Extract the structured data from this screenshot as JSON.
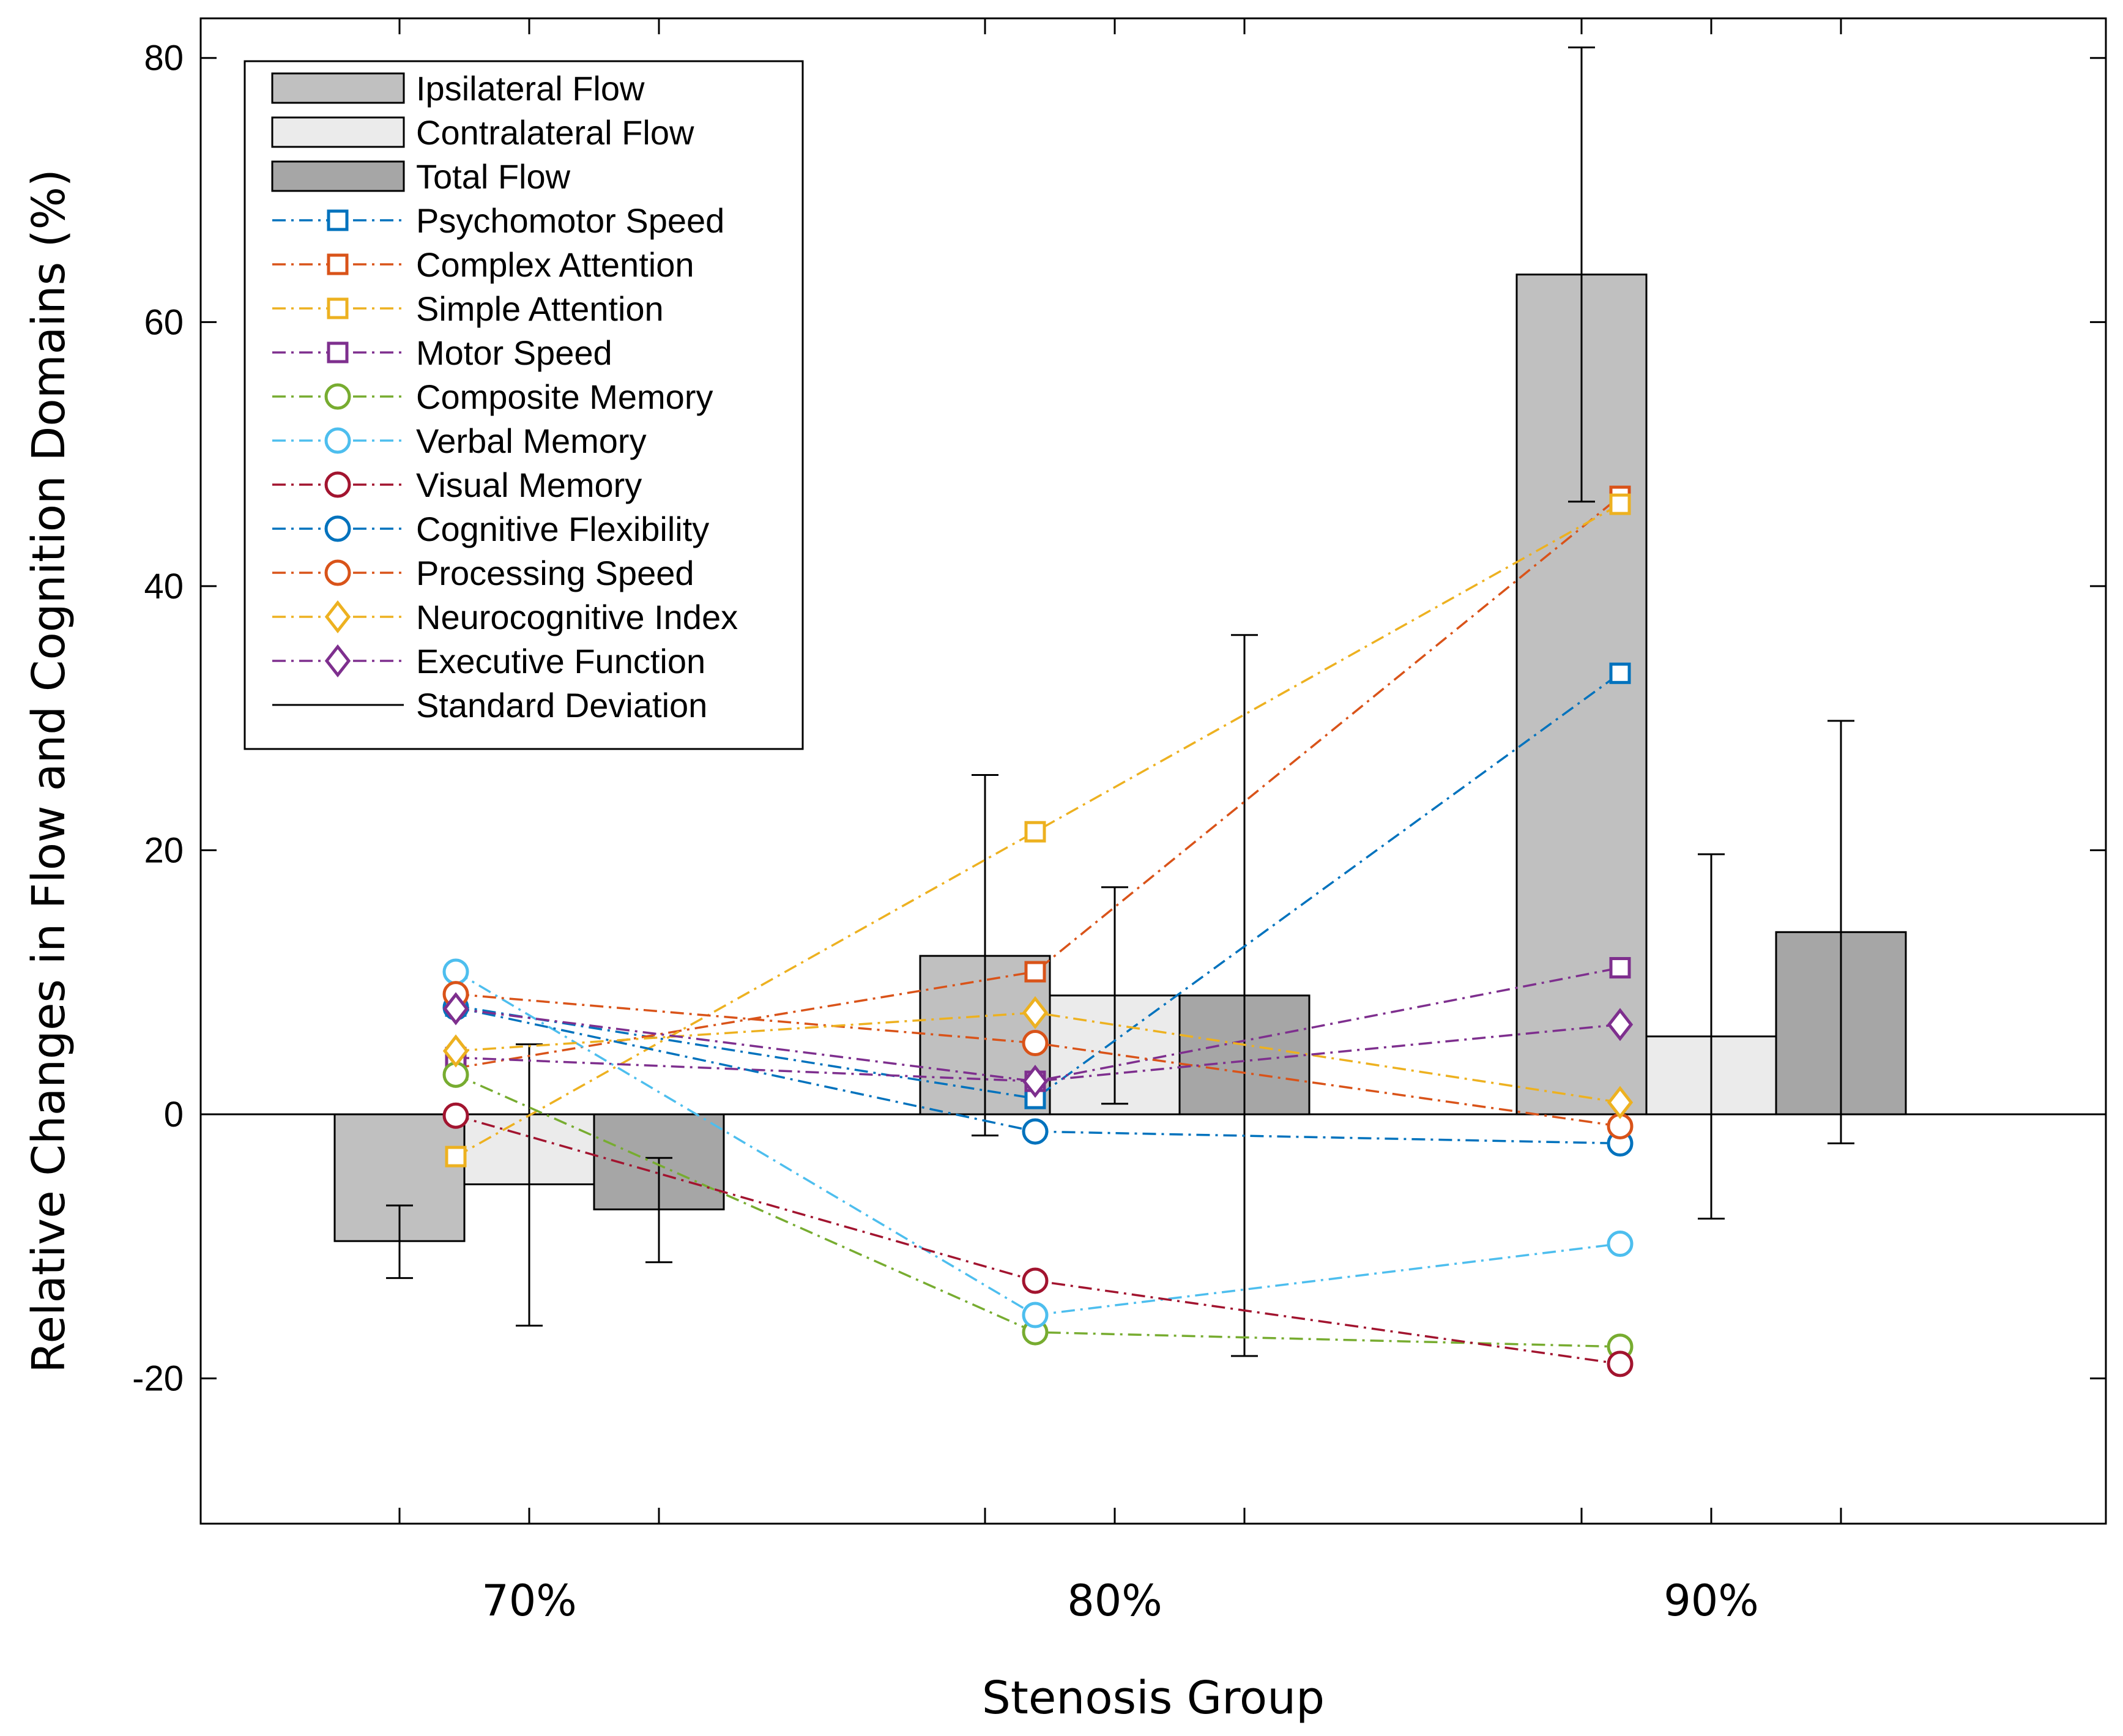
{
  "chart_data": {
    "type": "bar",
    "title": "",
    "xlabel": "Stenosis Group",
    "ylabel": "Relative Changes in Flow and Cognition Domains (%)",
    "ylim": [
      -31,
      83
    ],
    "yticks": [
      -20,
      0,
      20,
      40,
      60,
      80
    ],
    "categories": [
      "70%",
      "80%",
      "90%"
    ],
    "bar_series": [
      {
        "name": "Ipsilateral Flow",
        "color": "#c0c0c0",
        "values": [
          -9.6,
          12.0,
          63.6
        ],
        "sd_upper": [
          -6.9,
          25.7,
          80.8
        ],
        "sd_lower": [
          -12.4,
          -1.6,
          46.4
        ]
      },
      {
        "name": "Contralateral Flow",
        "color": "#ebebeb",
        "values": [
          -5.3,
          9.0,
          5.9
        ],
        "sd_upper": [
          5.3,
          17.2,
          19.7
        ],
        "sd_lower": [
          -16.0,
          0.8,
          -7.9
        ]
      },
      {
        "name": "Total Flow",
        "color": "#a6a6a6",
        "values": [
          -7.2,
          9.0,
          13.8
        ],
        "sd_upper": [
          -3.3,
          36.3,
          29.8
        ],
        "sd_lower": [
          -11.2,
          -18.3,
          -2.2
        ]
      }
    ],
    "line_series": [
      {
        "name": "Psychomotor Speed",
        "color": "#0072bd",
        "marker": "square",
        "values": [
          8.2,
          1.2,
          33.4
        ]
      },
      {
        "name": "Complex Attention",
        "color": "#d95319",
        "marker": "square",
        "values": [
          3.5,
          10.8,
          46.8
        ]
      },
      {
        "name": "Simple Attention",
        "color": "#edb120",
        "marker": "square",
        "values": [
          -3.2,
          21.4,
          46.2
        ]
      },
      {
        "name": "Motor Speed",
        "color": "#7e2f8e",
        "marker": "square",
        "values": [
          4.3,
          2.5,
          11.1
        ]
      },
      {
        "name": "Composite Memory",
        "color": "#77ac30",
        "marker": "circle",
        "values": [
          3.0,
          -16.5,
          -17.6
        ]
      },
      {
        "name": "Verbal Memory",
        "color": "#4dbeee",
        "marker": "circle",
        "values": [
          10.8,
          -15.2,
          -9.8
        ]
      },
      {
        "name": "Visual Memory",
        "color": "#a2142f",
        "marker": "circle",
        "values": [
          -0.1,
          -12.6,
          -18.9
        ]
      },
      {
        "name": "Cognitive Flexibility",
        "color": "#0072bd",
        "marker": "circle",
        "values": [
          8.1,
          -1.3,
          -2.2
        ]
      },
      {
        "name": "Processing Speed",
        "color": "#d95319",
        "marker": "circle",
        "values": [
          9.1,
          5.4,
          -0.9
        ]
      },
      {
        "name": "Neurocognitive Index",
        "color": "#edb120",
        "marker": "diamond",
        "values": [
          4.8,
          7.7,
          0.9
        ]
      },
      {
        "name": "Executive Function",
        "color": "#7e2f8e",
        "marker": "diamond",
        "values": [
          8.0,
          2.5,
          6.8
        ]
      }
    ],
    "sd_label": "Standard Deviation",
    "legend_position": "top-left",
    "grid": false
  }
}
